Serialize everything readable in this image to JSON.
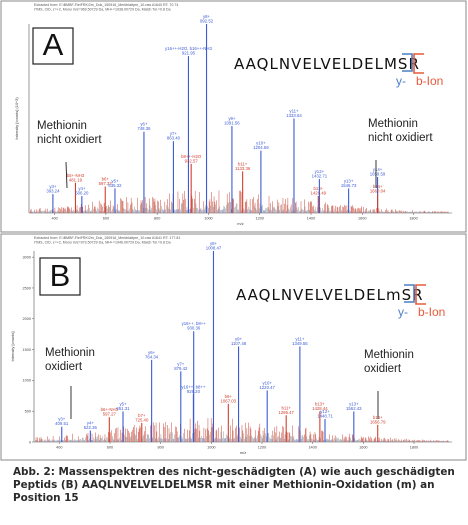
{
  "colors": {
    "y_ion": "#4a7fc4",
    "b_ion": "#e85a3a",
    "peak_blue": "#3b5bd6",
    "peak_red": "#d2402c",
    "frame": "#888888"
  },
  "chart_data": [
    {
      "type": "bar",
      "panel_letter": "A",
      "header_lines": [
        "Extracted from: E:\\BMBF-FleiFRK\\2m_Dok_150916_Merkblattpre_10.raw #1640  RT: 70.74",
        "ITMS, CID, z=+2, Mono m/z=969.50729 Da, MH+=1938.00729 Da, Match Tol.=0.8 Da"
      ],
      "xlabel": "m/z",
      "ylabel": "Intensity [counts] (10^3)",
      "x_ticks": [
        "400",
        "600",
        "800",
        "1000",
        "1200",
        "1400",
        "1600",
        "1800"
      ],
      "xlim": [
        300,
        1950
      ],
      "sequence": "AAQLNVELVELDELMSR",
      "bracket_labels": {
        "y": "y-",
        "b": "b-Ion"
      },
      "annotations": [
        {
          "lines": [
            "Methionin",
            "nicht oxidiert"
          ],
          "side": "left"
        },
        {
          "lines": [
            "Methionin",
            "nicht oxidiert"
          ],
          "side": "right"
        }
      ],
      "labeled_peaks": [
        {
          "mz": 393.24,
          "rel": 0.1,
          "ion": "y",
          "label": [
            "y3+",
            "393.24"
          ]
        },
        {
          "mz": 481.19,
          "rel": 0.16,
          "ion": "b",
          "label": [
            "b5+-NH3",
            "481.19"
          ]
        },
        {
          "mz": 506.2,
          "rel": 0.09,
          "ion": "y",
          "label": [
            "y4+",
            "506.20"
          ]
        },
        {
          "mz": 597.37,
          "rel": 0.14,
          "ion": "b",
          "label": [
            "b6+",
            "597.37"
          ]
        },
        {
          "mz": 635.32,
          "rel": 0.13,
          "ion": "y",
          "label": [
            "y5+",
            "635.32"
          ]
        },
        {
          "mz": 748.36,
          "rel": 0.43,
          "ion": "y",
          "label": [
            "y6+",
            "748.36"
          ]
        },
        {
          "mz": 863.4,
          "rel": 0.38,
          "ion": "y",
          "label": [
            "y7+",
            "863.40"
          ]
        },
        {
          "mz": 921.95,
          "rel": 0.83,
          "ion": "y",
          "label": [
            "y16++-H2O, b16++-NH3",
            "921.95"
          ]
        },
        {
          "mz": 932.57,
          "rel": 0.26,
          "ion": "b",
          "label": [
            "b8++-H2O",
            "932.57"
          ]
        },
        {
          "mz": 992.52,
          "rel": 1.0,
          "ion": "y",
          "label": [
            "y8+",
            "992.52"
          ]
        },
        {
          "mz": 1091.56,
          "rel": 0.46,
          "ion": "y",
          "label": [
            "y9+",
            "1091.56"
          ]
        },
        {
          "mz": 1133.36,
          "rel": 0.22,
          "ion": "b",
          "label": [
            "b11+",
            "1133.36"
          ]
        },
        {
          "mz": 1204.59,
          "rel": 0.33,
          "ion": "y",
          "label": [
            "y10+",
            "1204.59"
          ]
        },
        {
          "mz": 1333.64,
          "rel": 0.5,
          "ion": "y",
          "label": [
            "y11+",
            "1333.64"
          ]
        },
        {
          "mz": 1428.49,
          "rel": 0.09,
          "ion": "b",
          "label": [
            "b13+",
            "1428.49"
          ]
        },
        {
          "mz": 1432.71,
          "rel": 0.18,
          "ion": "y",
          "label": [
            "y12+",
            "1432.71"
          ]
        },
        {
          "mz": 1546.73,
          "rel": 0.13,
          "ion": "y",
          "label": [
            "y13+",
            "1546.73"
          ]
        },
        {
          "mz": 1659.59,
          "rel": 0.19,
          "ion": "y",
          "label": [
            "y14+",
            "1659.59"
          ]
        },
        {
          "mz": 1660.04,
          "rel": 0.1,
          "ion": "b",
          "label": [
            "b14+",
            "1660.04"
          ]
        }
      ]
    },
    {
      "type": "bar",
      "panel_letter": "B",
      "header_lines": [
        "Extracted from: E:\\BMBF-FleiFRK\\2m_Dok_150916_Merkblattpre_10.raw #1641  RT: 177.81",
        "ITMS, CID, z=+2, Mono m/z=973.50729 Da, MH+=1946.00729 Da, Match Tol.=0.8 Da"
      ],
      "xlabel": "m/z",
      "ylabel": "Intensity [counts]",
      "y_ticks": [
        "0",
        "500",
        "1000",
        "1500",
        "2000",
        "2500",
        "3000"
      ],
      "ylim": [
        0,
        3100
      ],
      "x_ticks": [
        "400",
        "600",
        "800",
        "1000",
        "1200",
        "1400",
        "1600",
        "1800"
      ],
      "xlim": [
        300,
        1950
      ],
      "sequence": "AAQLNVELVELDELmSR",
      "bracket_labels": {
        "y": "y-",
        "b": "b-Ion"
      },
      "annotations": [
        {
          "lines": [
            "Methionin",
            "oxidiert"
          ],
          "side": "left"
        },
        {
          "lines": [
            "Methionin",
            "oxidiert"
          ],
          "side": "right"
        }
      ],
      "labeled_peaks": [
        {
          "mz": 409.51,
          "rel": 0.08,
          "ion": "y",
          "label": [
            "y3+",
            "409.51"
          ]
        },
        {
          "mz": 522.36,
          "rel": 0.06,
          "ion": "y",
          "label": [
            "y4+",
            "522.36"
          ]
        },
        {
          "mz": 597.27,
          "rel": 0.13,
          "ion": "b",
          "label": [
            "b6+-NH3",
            "597.27"
          ]
        },
        {
          "mz": 651.31,
          "rel": 0.16,
          "ion": "y",
          "label": [
            "y5+",
            "651.31"
          ]
        },
        {
          "mz": 725.4,
          "rel": 0.1,
          "ion": "b",
          "label": [
            "b7+",
            "725.40"
          ]
        },
        {
          "mz": 764.34,
          "rel": 0.43,
          "ion": "y",
          "label": [
            "y6+",
            "764.34"
          ]
        },
        {
          "mz": 879.42,
          "rel": 0.37,
          "ion": "y",
          "label": [
            "y7+",
            "879.42"
          ]
        },
        {
          "mz": 929.2,
          "rel": 0.25,
          "ion": "y",
          "label": [
            "y16++, b8++",
            "929.20"
          ]
        },
        {
          "mz": 930.36,
          "rel": 0.58,
          "ion": "y",
          "label": [
            "y16++, b8++",
            "930.36"
          ]
        },
        {
          "mz": 1008.47,
          "rel": 1.0,
          "ion": "y",
          "label": [
            "y8+",
            "1008.47"
          ]
        },
        {
          "mz": 1067.03,
          "rel": 0.2,
          "ion": "b",
          "label": [
            "b9+",
            "1067.03"
          ]
        },
        {
          "mz": 1107.48,
          "rel": 0.5,
          "ion": "y",
          "label": [
            "y9+",
            "1107.48"
          ]
        },
        {
          "mz": 1220.47,
          "rel": 0.27,
          "ion": "y",
          "label": [
            "y10+",
            "1220.47"
          ]
        },
        {
          "mz": 1295.47,
          "rel": 0.14,
          "ion": "b",
          "label": [
            "b11+",
            "1295.47"
          ]
        },
        {
          "mz": 1349.55,
          "rel": 0.5,
          "ion": "y",
          "label": [
            "y11+",
            "1349.55"
          ]
        },
        {
          "mz": 1428.44,
          "rel": 0.16,
          "ion": "b",
          "label": [
            "b13+",
            "1428.44"
          ]
        },
        {
          "mz": 1448.71,
          "rel": 0.12,
          "ion": "y",
          "label": [
            "y12+",
            "1448.71"
          ]
        },
        {
          "mz": 1562.43,
          "rel": 0.16,
          "ion": "y",
          "label": [
            "y13+",
            "1562.43"
          ]
        },
        {
          "mz": 1656.79,
          "rel": 0.09,
          "ion": "b",
          "label": [
            "b14+",
            "1656.79"
          ]
        }
      ]
    }
  ],
  "caption": "Abb. 2: Massenspektren des nicht-geschädigten (A) wie auch geschädigten Peptids (B) AAQLNVELVELDELMSR mit einer Methionin-Oxidation (m) an Position 15"
}
